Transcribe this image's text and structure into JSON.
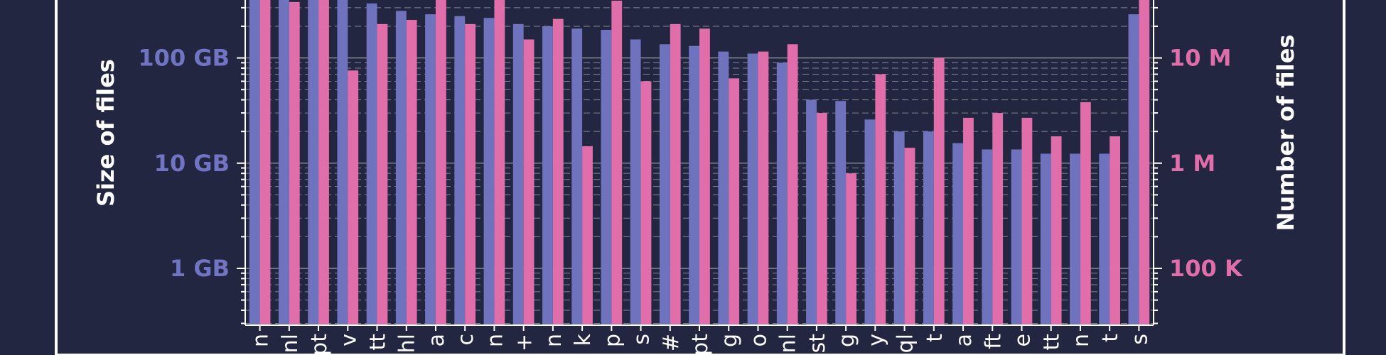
{
  "chart_data": {
    "type": "bar",
    "ylabel_left": "Size of files",
    "ylabel_right": "Number of files",
    "yscale": "log",
    "ylim_left_gb": [
      0.32,
      450
    ],
    "ylim_right_files": [
      32000,
      45000000
    ],
    "left_ticks": [
      "1 GB",
      "10 GB",
      "100 GB"
    ],
    "right_ticks": [
      "100 K",
      "1 M",
      "10 M"
    ],
    "categories": [
      "n",
      "nl",
      "pt",
      "v",
      "tt",
      "hl",
      "a",
      "c",
      "n",
      "+",
      "n",
      "k",
      "p",
      "s",
      "#",
      "pt",
      "g",
      "o",
      "nl",
      "st",
      "g",
      "y",
      "ql",
      "t",
      "a",
      "ft",
      "e",
      "tt",
      "n",
      "t",
      "s"
    ],
    "series": [
      {
        "name": "",
        "color": "#6f72bd",
        "values": [
          450,
          450,
          450,
          450,
          330,
          280,
          260,
          250,
          240,
          210,
          200,
          190,
          185,
          150,
          135,
          130,
          115,
          110,
          90,
          40,
          39,
          26,
          20,
          20,
          15.5,
          13.5,
          13.5,
          12.3,
          12.3,
          12.3,
          260
        ]
      },
      {
        "name": "",
        "color": "#df6eab",
        "values": [
          45000000,
          34000000,
          45000000,
          7600000,
          21000000,
          23000000,
          45000000,
          21000000,
          45000000,
          15000000,
          23500000,
          1450000,
          35000000,
          6000000,
          21000000,
          19000000,
          6400000,
          11500000,
          13500000,
          3000000,
          800000,
          7000000,
          1400000,
          10000000,
          2700000,
          3000000,
          2700000,
          1800000,
          3800000,
          1800000,
          45000000
        ]
      }
    ]
  }
}
